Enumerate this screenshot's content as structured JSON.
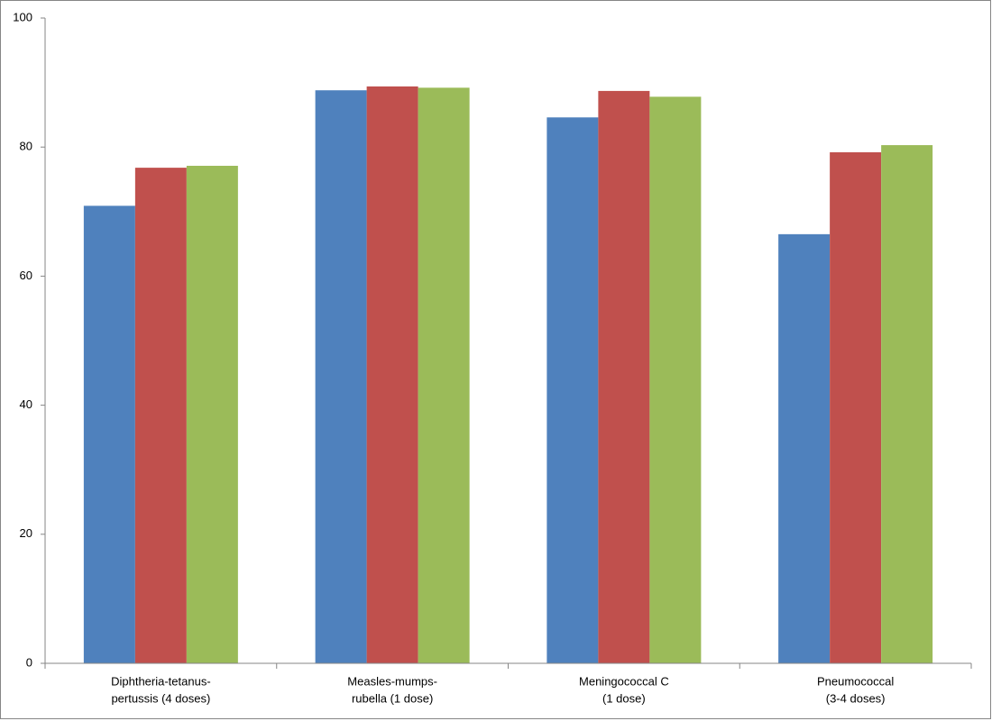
{
  "chart_data": {
    "type": "bar",
    "categories": [
      [
        "Diphtheria-tetanus-",
        "pertussis (4 doses)"
      ],
      [
        "Measles-mumps-",
        "rubella (1 dose)"
      ],
      [
        "Meningococcal C",
        "(1 dose)"
      ],
      [
        "Pneumococcal",
        "(3-4 doses)"
      ]
    ],
    "series": [
      {
        "color": "#4f81bd",
        "values": [
          70.9,
          88.8,
          84.6,
          66.5
        ]
      },
      {
        "color": "#c0504d",
        "values": [
          76.8,
          89.4,
          88.7,
          79.2
        ]
      },
      {
        "color": "#9bbb59",
        "values": [
          77.1,
          89.2,
          87.8,
          80.3
        ]
      }
    ],
    "ylim": [
      0,
      100
    ],
    "yticks": [
      0,
      20,
      40,
      60,
      80,
      100
    ],
    "grid": false
  }
}
